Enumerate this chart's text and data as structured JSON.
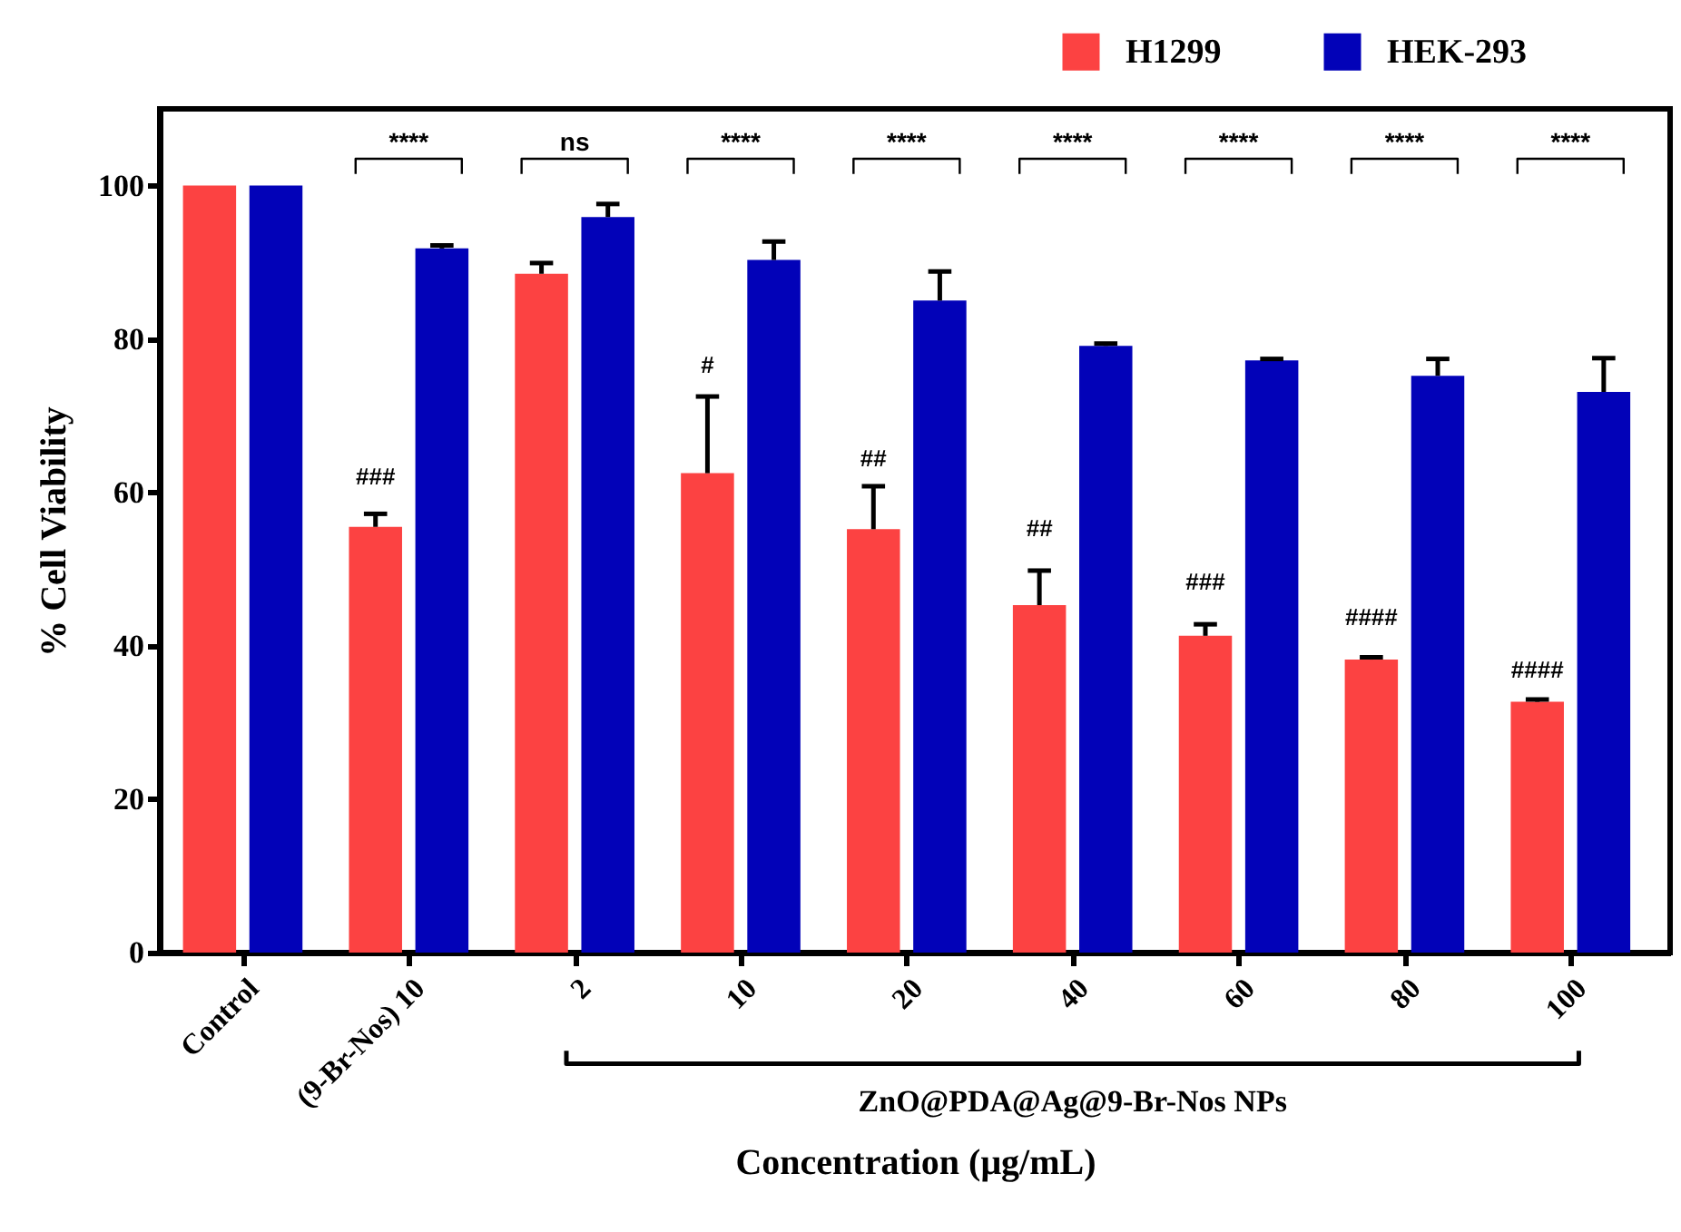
{
  "chart_data": {
    "type": "bar",
    "xlabel": "Concentration (μg/mL)",
    "ylabel": "% Cell Viability",
    "categories": [
      "Control",
      "(9-Br-Nos) 10",
      "2",
      "10",
      "20",
      "40",
      "60",
      "80",
      "100"
    ],
    "series": [
      {
        "name": "H1299",
        "color": "#fc4242",
        "values": [
          100,
          55.5,
          88.5,
          62.5,
          55.2,
          45.3,
          41.3,
          38.2,
          32.7
        ],
        "errors": [
          null,
          [
            55.5,
            57.2
          ],
          [
            88.5,
            89.9
          ],
          [
            62.5,
            72.5
          ],
          [
            55.2,
            60.8
          ],
          [
            45.3,
            49.8
          ],
          [
            41.3,
            42.8
          ],
          [
            38.2,
            38.5
          ],
          [
            32.7,
            33.0
          ]
        ]
      },
      {
        "name": "HEK-293",
        "color": "#0202b8",
        "values": [
          100,
          91.8,
          95.9,
          90.3,
          85,
          79.1,
          77.2,
          75.2,
          73.1
        ],
        "errors": [
          null,
          [
            91.8,
            92.2
          ],
          [
            95.9,
            97.6
          ],
          [
            90.3,
            92.7
          ],
          [
            85,
            88.8
          ],
          [
            79.1,
            79.4
          ],
          [
            77.2,
            77.4
          ],
          [
            75.2,
            77.4
          ],
          [
            73.1,
            77.5
          ]
        ]
      }
    ],
    "ylim": [
      0,
      110
    ],
    "yticks": [
      0,
      20,
      40,
      60,
      80,
      100
    ],
    "legend": "top right",
    "annotations": [
      "****",
      "ns",
      "****",
      "****",
      "****",
      "****",
      "****",
      "****",
      {
        "text": "###",
        "x": "(9-Br-Nos) 10",
        "y": 62
      },
      {
        "text": "#",
        "x": "10",
        "y": 76.5
      },
      {
        "text": "##",
        "x": "20",
        "y": 64.4
      },
      {
        "text": "##",
        "x": "40",
        "y": 55.2
      },
      {
        "text": "###",
        "x": "60",
        "y": 48.2
      },
      {
        "text": "####",
        "x": "80",
        "y": 43.7
      },
      {
        "text": "####",
        "x": "100",
        "y": 36.8
      },
      "ZnO@PDA@Ag@9-Br-Nos NPs"
    ]
  }
}
